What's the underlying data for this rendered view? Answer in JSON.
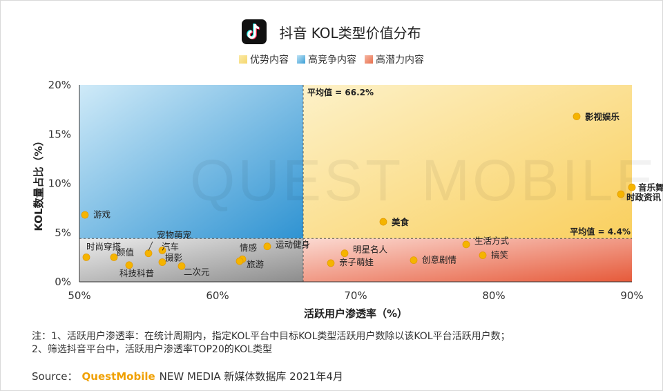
{
  "title": "抖音 KOL类型价值分布",
  "legend": [
    {
      "label": "优势内容",
      "color": "#f5d76e"
    },
    {
      "label": "高竞争内容",
      "color": "#4aa8d8"
    },
    {
      "label": "高潜力内容",
      "color": "#e8704e"
    }
  ],
  "watermark": "QUEST MOBILE",
  "notes": [
    "注：1、活跃用户渗透率：在统计周期内，指定KOL平台中目标KOL类型活跃用户数除以该KOL平台活跃用户数；",
    "2、筛选抖音平台中，活跃用户渗透率TOP20的KOL类型"
  ],
  "source": {
    "prefix": "Source：",
    "brand": "QuestMobile",
    "text": "NEW MEDIA 新媒体数据库 2021年4月"
  },
  "chart_data": {
    "type": "scatter",
    "title": "抖音 KOL类型价值分布",
    "xlabel": "活跃用户渗透率（%）",
    "ylabel": "KOL数量占比（%）",
    "xlim": [
      50,
      90
    ],
    "ylim": [
      0,
      20
    ],
    "x_ticks": [
      "50%",
      "60%",
      "70%",
      "80%",
      "90%"
    ],
    "y_ticks": [
      "0%",
      "5%",
      "10%",
      "15%",
      "20%"
    ],
    "avg_x": 66.2,
    "avg_x_label": "平均值 = 66.2%",
    "avg_y": 4.4,
    "avg_y_label": "平均值 = 4.4%",
    "point_color": "#f5b400",
    "points": [
      {
        "label": "影视娱乐",
        "x": 86.0,
        "y": 16.8,
        "bold": true
      },
      {
        "label": "音乐舞蹈",
        "x": 90.0,
        "y": 9.6,
        "bold": true
      },
      {
        "label": "时政资讯",
        "x": 89.2,
        "y": 8.9,
        "bold": true
      },
      {
        "label": "美食",
        "x": 72.0,
        "y": 6.1,
        "bold": true
      },
      {
        "label": "游戏",
        "x": 50.4,
        "y": 6.8,
        "bold": false
      },
      {
        "label": "生活方式",
        "x": 78.0,
        "y": 3.8,
        "bold": false
      },
      {
        "label": "明星名人",
        "x": 69.2,
        "y": 2.9,
        "bold": false
      },
      {
        "label": "搞笑",
        "x": 79.2,
        "y": 2.7,
        "bold": false
      },
      {
        "label": "创意剧情",
        "x": 74.2,
        "y": 2.2,
        "bold": false
      },
      {
        "label": "亲子萌娃",
        "x": 68.2,
        "y": 1.9,
        "bold": false
      },
      {
        "label": "运动健身",
        "x": 63.6,
        "y": 3.6,
        "bold": false
      },
      {
        "label": "情感",
        "x": 61.8,
        "y": 2.3,
        "bold": false
      },
      {
        "label": "旅游",
        "x": 61.6,
        "y": 2.1,
        "bold": false
      },
      {
        "label": "宠物萌宠",
        "x": 55.0,
        "y": 2.9,
        "bold": false
      },
      {
        "label": "汽车",
        "x": 56.0,
        "y": 3.2,
        "bold": false
      },
      {
        "label": "时尚穿搭",
        "x": 50.5,
        "y": 2.5,
        "bold": false
      },
      {
        "label": "颜值",
        "x": 52.5,
        "y": 2.5,
        "bold": false
      },
      {
        "label": "科技科普",
        "x": 53.6,
        "y": 1.7,
        "bold": false
      },
      {
        "label": "摄影",
        "x": 56.0,
        "y": 2.0,
        "bold": false
      },
      {
        "label": "二次元",
        "x": 57.4,
        "y": 1.6,
        "bold": false
      }
    ]
  }
}
